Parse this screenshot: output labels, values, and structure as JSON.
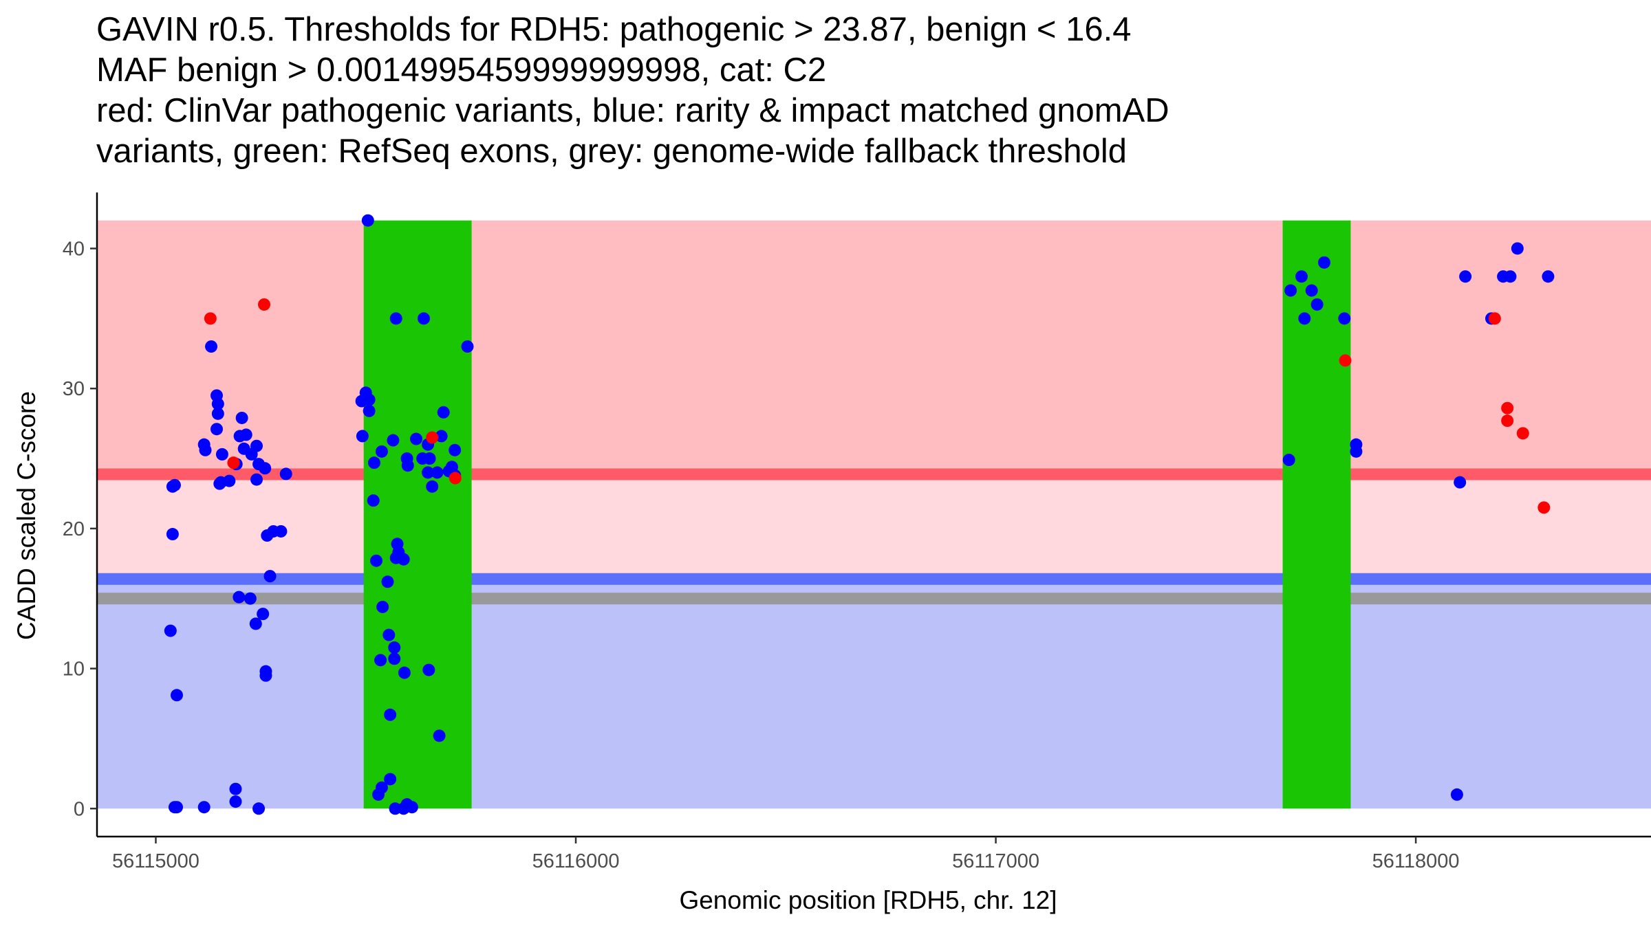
{
  "title_lines": [
    "GAVIN r0.5. Thresholds for RDH5: pathogenic > 23.87, benign < 16.4",
    "MAF benign > 0.0014995459999999998, cat: C2",
    "red: ClinVar pathogenic variants, blue: rarity & impact matched gnomAD",
    "variants, green: RefSeq exons, grey: genome-wide fallback threshold"
  ],
  "colors": {
    "pathogenic_region": "#ffbdc2",
    "intermediate_region": "#ffd9de",
    "benign_region": "#bcc1fa",
    "pathogenic_line": "#ff5a68",
    "benign_line": "#5a6ffa",
    "fallback_line": "#999999",
    "exon": "#1ac604",
    "gnomad_point": "#0000ff",
    "clinvar_point": "#ff0000"
  },
  "chart_data": {
    "type": "scatter",
    "xlabel": "Genomic position [RDH5, chr. 12]",
    "ylabel": "CADD scaled C-score",
    "xlim": [
      56114860,
      56118560
    ],
    "ylim": [
      -2,
      44
    ],
    "x_ticks": [
      56115000,
      56116000,
      56117000,
      56118000
    ],
    "x_tick_labels": [
      "56115000",
      "56116000",
      "56117000",
      "56118000"
    ],
    "y_ticks": [
      0,
      10,
      20,
      30,
      40
    ],
    "y_tick_labels": [
      "0",
      "10",
      "20",
      "30",
      "40"
    ],
    "region_x_range": [
      56114860,
      56118560
    ],
    "regions": [
      {
        "name": "pathogenic",
        "y_from": 23.87,
        "y_to": 42
      },
      {
        "name": "intermediate",
        "y_from": 16.4,
        "y_to": 23.87
      },
      {
        "name": "benign",
        "y_from": 0,
        "y_to": 16.4
      }
    ],
    "threshold_lines": [
      {
        "name": "pathogenic",
        "y": 23.87
      },
      {
        "name": "benign",
        "y": 16.4
      },
      {
        "name": "fallback",
        "y": 15.0
      }
    ],
    "exons": [
      {
        "x_from": 56115495,
        "x_to": 56115752,
        "y_from": 0,
        "y_to": 42
      },
      {
        "x_from": 56117683,
        "x_to": 56117845,
        "y_from": 0,
        "y_to": 42
      }
    ],
    "series": [
      {
        "name": "ClinVar pathogenic variants",
        "color_key": "clinvar_point",
        "points": [
          [
            56115130,
            35.0
          ],
          [
            56115258,
            36.0
          ],
          [
            56115185,
            24.7
          ],
          [
            56115658,
            26.5
          ],
          [
            56115713,
            23.6
          ],
          [
            56117832,
            32.0
          ],
          [
            56118188,
            35.0
          ],
          [
            56118218,
            28.6
          ],
          [
            56118218,
            27.7
          ],
          [
            56118255,
            26.8
          ],
          [
            56118305,
            21.5
          ]
        ]
      },
      {
        "name": "rarity & impact matched gnomAD variants",
        "color_key": "gnomad_point",
        "points": [
          [
            56115045,
            0.1
          ],
          [
            56115050,
            0.1
          ],
          [
            56115115,
            0.1
          ],
          [
            56115190,
            0.5
          ],
          [
            56115190,
            1.4
          ],
          [
            56115245,
            0.0
          ],
          [
            56115045,
            23.1
          ],
          [
            56115040,
            23.0
          ],
          [
            56115050,
            8.1
          ],
          [
            56115035,
            12.7
          ],
          [
            56115040,
            19.6
          ],
          [
            56115115,
            26.0
          ],
          [
            56115118,
            25.6
          ],
          [
            56115132,
            33.0
          ],
          [
            56115145,
            29.5
          ],
          [
            56115148,
            28.9
          ],
          [
            56115148,
            28.2
          ],
          [
            56115145,
            27.1
          ],
          [
            56115158,
            25.3
          ],
          [
            56115152,
            23.2
          ],
          [
            56115155,
            23.3
          ],
          [
            56115175,
            23.4
          ],
          [
            56115192,
            24.6
          ],
          [
            56115200,
            26.6
          ],
          [
            56115205,
            27.9
          ],
          [
            56115210,
            25.7
          ],
          [
            56115215,
            26.7
          ],
          [
            56115228,
            25.3
          ],
          [
            56115240,
            23.5
          ],
          [
            56115240,
            25.9
          ],
          [
            56115245,
            24.6
          ],
          [
            56115260,
            24.3
          ],
          [
            56115265,
            19.5
          ],
          [
            56115280,
            19.8
          ],
          [
            56115298,
            19.8
          ],
          [
            56115310,
            23.9
          ],
          [
            56115272,
            16.6
          ],
          [
            56115198,
            15.1
          ],
          [
            56115225,
            15.0
          ],
          [
            56115238,
            13.2
          ],
          [
            56115255,
            13.9
          ],
          [
            56115262,
            9.8
          ],
          [
            56115262,
            9.5
          ],
          [
            56115490,
            29.1
          ],
          [
            56115500,
            29.7
          ],
          [
            56115508,
            29.2
          ],
          [
            56115508,
            28.4
          ],
          [
            56115492,
            26.6
          ],
          [
            56115520,
            24.7
          ],
          [
            56115538,
            25.5
          ],
          [
            56115518,
            22.0
          ],
          [
            56115525,
            17.7
          ],
          [
            56115540,
            14.4
          ],
          [
            56115552,
            16.2
          ],
          [
            56115565,
            26.3
          ],
          [
            56115575,
            18.9
          ],
          [
            56115578,
            18.3
          ],
          [
            56115572,
            17.9
          ],
          [
            56115590,
            17.8
          ],
          [
            56115598,
            25.0
          ],
          [
            56115600,
            24.5
          ],
          [
            56115620,
            26.4
          ],
          [
            56115635,
            25.0
          ],
          [
            56115648,
            26.0
          ],
          [
            56115652,
            25.0
          ],
          [
            56115648,
            24.0
          ],
          [
            56115658,
            23.0
          ],
          [
            56115670,
            24.0
          ],
          [
            56115680,
            26.6
          ],
          [
            56115685,
            28.3
          ],
          [
            56115705,
            24.4
          ],
          [
            56115712,
            25.6
          ],
          [
            56115712,
            23.8
          ],
          [
            56115698,
            24.1
          ],
          [
            56115572,
            35.0
          ],
          [
            56115638,
            35.0
          ],
          [
            56115742,
            33.0
          ],
          [
            56115505,
            42.0
          ],
          [
            56115535,
            10.6
          ],
          [
            56115555,
            12.4
          ],
          [
            56115568,
            11.5
          ],
          [
            56115568,
            10.7
          ],
          [
            56115592,
            9.7
          ],
          [
            56115650,
            9.9
          ],
          [
            56115558,
            6.7
          ],
          [
            56115675,
            5.2
          ],
          [
            56115558,
            2.1
          ],
          [
            56115530,
            1.0
          ],
          [
            56115538,
            1.5
          ],
          [
            56115570,
            0.0
          ],
          [
            56115590,
            0.0
          ],
          [
            56115598,
            0.3
          ],
          [
            56115610,
            0.1
          ],
          [
            56117698,
            24.9
          ],
          [
            56117702,
            37.0
          ],
          [
            56117728,
            38.0
          ],
          [
            56117735,
            35.0
          ],
          [
            56117752,
            37.0
          ],
          [
            56117765,
            36.0
          ],
          [
            56117782,
            39.0
          ],
          [
            56117830,
            35.0
          ],
          [
            56117858,
            26.0
          ],
          [
            56117858,
            25.5
          ],
          [
            56118105,
            23.3
          ],
          [
            56118098,
            1.0
          ],
          [
            56118118,
            38.0
          ],
          [
            56118180,
            35.0
          ],
          [
            56118208,
            38.0
          ],
          [
            56118225,
            38.0
          ],
          [
            56118242,
            40.0
          ],
          [
            56118315,
            38.0
          ]
        ]
      }
    ]
  }
}
